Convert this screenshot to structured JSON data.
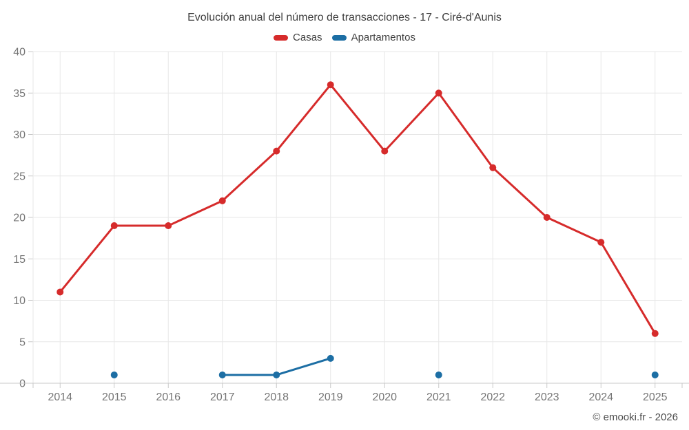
{
  "title": "Evolución anual del número de transacciones - 17 - Ciré-d'Aunis",
  "footer": "© emooki.fr - 2026",
  "legend": [
    {
      "label": "Casas",
      "color": "#d62b2b"
    },
    {
      "label": "Apartamentos",
      "color": "#1c6ea4"
    }
  ],
  "chart_data": {
    "type": "line",
    "title": "Evolución anual del número de transacciones - 17 - Ciré-d'Aunis",
    "x": [
      2014,
      2015,
      2016,
      2017,
      2018,
      2019,
      2020,
      2021,
      2022,
      2023,
      2024,
      2025
    ],
    "series": [
      {
        "name": "Casas",
        "color": "#d62b2b",
        "values": [
          11,
          19,
          19,
          22,
          28,
          36,
          28,
          35,
          26,
          20,
          17,
          6
        ]
      },
      {
        "name": "Apartamentos",
        "color": "#1c6ea4",
        "values": [
          null,
          1,
          null,
          1,
          1,
          3,
          null,
          1,
          null,
          null,
          null,
          1
        ]
      }
    ],
    "xlabel": "",
    "ylabel": "",
    "ylim": [
      0,
      40
    ],
    "ytick_step": 5,
    "grid": true,
    "legend_position": "top",
    "colors": {
      "grid": "#e7e7e7",
      "axis": "#c9c9c9",
      "tick_label": "#757575"
    }
  }
}
